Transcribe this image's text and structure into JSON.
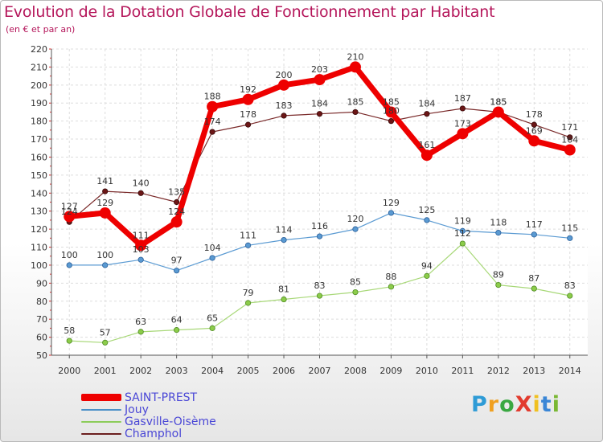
{
  "title": "Evolution de la Dotation Globale de Fonctionnement par Habitant",
  "subtitle": "(en € et par an)",
  "logo": {
    "text": "ProXiti",
    "letters": [
      "P",
      "r",
      "o",
      "X",
      "i",
      "t",
      "i"
    ],
    "colors": [
      "#2e9bd6",
      "#f0a020",
      "#3aa842",
      "#e23b2e",
      "#f0c020",
      "#3a86d6",
      "#7ab834"
    ]
  },
  "chart_data": {
    "type": "line",
    "title": "Evolution de la Dotation Globale de Fonctionnement par Habitant",
    "subtitle": "(en € et par an)",
    "xlabel": "",
    "ylabel": "",
    "categories": [
      "2000",
      "2001",
      "2002",
      "2003",
      "2004",
      "2005",
      "2006",
      "2007",
      "2008",
      "2009",
      "2010",
      "2011",
      "2012",
      "2013",
      "2014"
    ],
    "ylim": [
      50,
      220
    ],
    "yticks": [
      50,
      60,
      70,
      80,
      90,
      100,
      110,
      120,
      130,
      140,
      150,
      160,
      170,
      180,
      190,
      200,
      210,
      220
    ],
    "grid": true,
    "legend_position": "bottom-left",
    "series": [
      {
        "name": "SAINT-PREST",
        "color": "#ee0000",
        "values": [
          127,
          129,
          111,
          124,
          188,
          192,
          200,
          203,
          210,
          185,
          161,
          173,
          185,
          169,
          164
        ]
      },
      {
        "name": "Jouy",
        "color": "#4a90c8",
        "values": [
          100,
          100,
          103,
          97,
          104,
          111,
          114,
          116,
          120,
          129,
          125,
          119,
          118,
          117,
          115
        ]
      },
      {
        "name": "Gasville-Oisème",
        "color": "#8ccc5a",
        "values": [
          58,
          57,
          63,
          64,
          65,
          79,
          81,
          83,
          85,
          88,
          94,
          112,
          89,
          87,
          83
        ]
      },
      {
        "name": "Champhol",
        "color": "#6b1f1f",
        "values": [
          124,
          141,
          140,
          135,
          174,
          178,
          183,
          184,
          185,
          180,
          184,
          187,
          185,
          178,
          171
        ]
      }
    ]
  }
}
